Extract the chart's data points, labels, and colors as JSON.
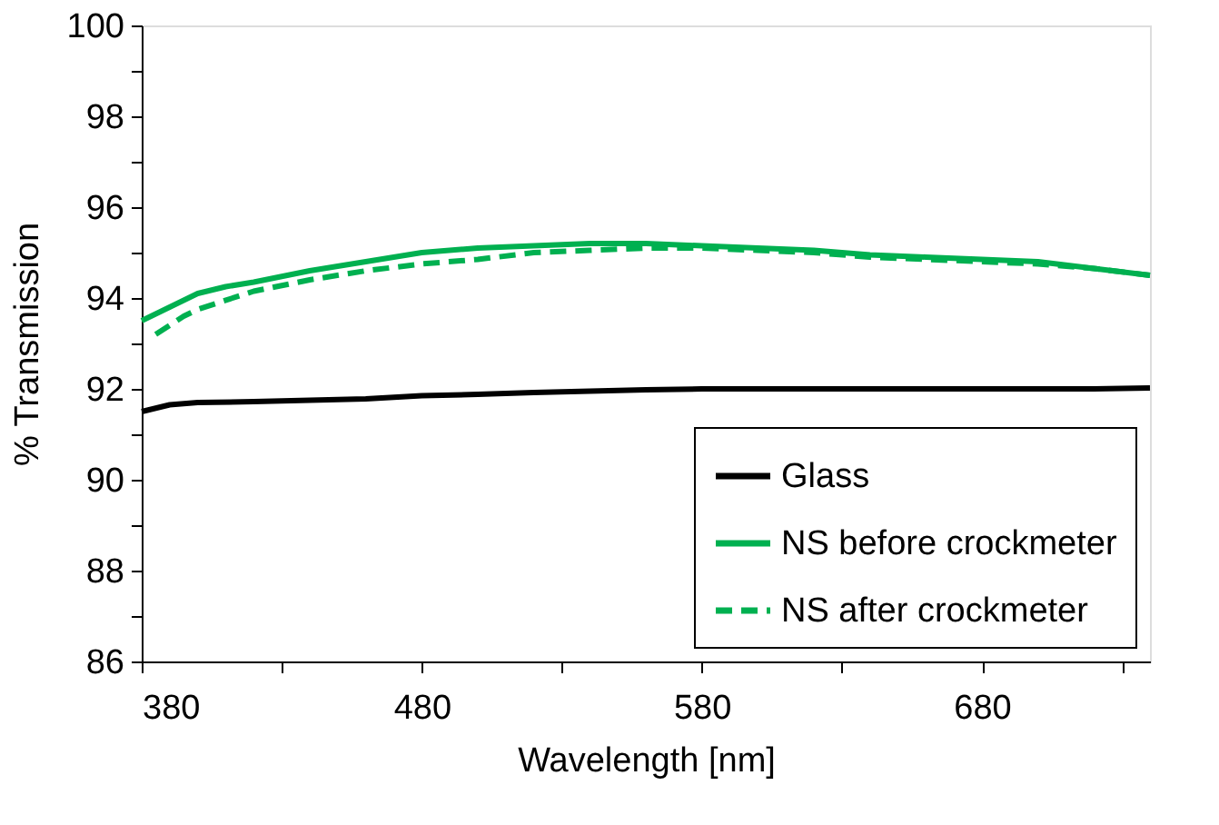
{
  "chart_data": {
    "type": "line",
    "xlabel": "Wavelength [nm]",
    "ylabel": "% Transmission",
    "xlim": [
      380,
      740
    ],
    "ylim": [
      86,
      100
    ],
    "xticks": [
      380,
      {
        "value": 430,
        "label": null
      },
      480,
      {
        "value": 530,
        "label": null
      },
      580,
      {
        "value": 630,
        "label": null
      },
      680,
      {
        "value": 730,
        "label": null
      }
    ],
    "yticks": [
      86,
      {
        "value": 87,
        "label": null
      },
      88,
      {
        "value": 89,
        "label": null
      },
      90,
      {
        "value": 91,
        "label": null
      },
      92,
      {
        "value": 93,
        "label": null
      },
      94,
      {
        "value": 95,
        "label": null
      },
      96,
      {
        "value": 97,
        "label": null
      },
      98,
      {
        "value": 99,
        "label": null
      },
      100
    ],
    "grid": false,
    "legend": "bottom right",
    "marker": "none",
    "series": [
      {
        "name": "Glass",
        "color": "#000000",
        "line_style": "solid",
        "x": [
          380,
          390,
          400,
          420,
          440,
          460,
          480,
          500,
          520,
          540,
          560,
          580,
          600,
          620,
          640,
          660,
          680,
          700,
          720,
          740
        ],
        "values": [
          91.5,
          91.65,
          91.7,
          91.72,
          91.75,
          91.78,
          91.85,
          91.88,
          91.92,
          91.95,
          91.98,
          92.0,
          92.0,
          92.0,
          92.0,
          92.0,
          92.0,
          92.0,
          92.0,
          92.02
        ]
      },
      {
        "name": "NS before crockmeter",
        "color": "#00b050",
        "line_style": "solid",
        "x": [
          380,
          390,
          400,
          410,
          420,
          440,
          460,
          480,
          500,
          520,
          540,
          560,
          580,
          600,
          620,
          640,
          660,
          680,
          700,
          720,
          740
        ],
        "values": [
          93.5,
          93.8,
          94.1,
          94.25,
          94.35,
          94.6,
          94.8,
          95.0,
          95.1,
          95.15,
          95.2,
          95.2,
          95.15,
          95.1,
          95.05,
          94.95,
          94.9,
          94.85,
          94.8,
          94.65,
          94.5
        ]
      },
      {
        "name": "NS after crockmeter",
        "color": "#00b050",
        "line_style": "dashed",
        "x": [
          385,
          395,
          400,
          420,
          440,
          460,
          480,
          500,
          520,
          540,
          560,
          580,
          600,
          620,
          640,
          660,
          680,
          700,
          720,
          740
        ],
        "values": [
          93.2,
          93.6,
          93.75,
          94.15,
          94.4,
          94.6,
          94.75,
          94.85,
          95.0,
          95.05,
          95.1,
          95.1,
          95.05,
          95.0,
          94.9,
          94.85,
          94.8,
          94.75,
          94.65,
          94.5
        ]
      }
    ]
  }
}
